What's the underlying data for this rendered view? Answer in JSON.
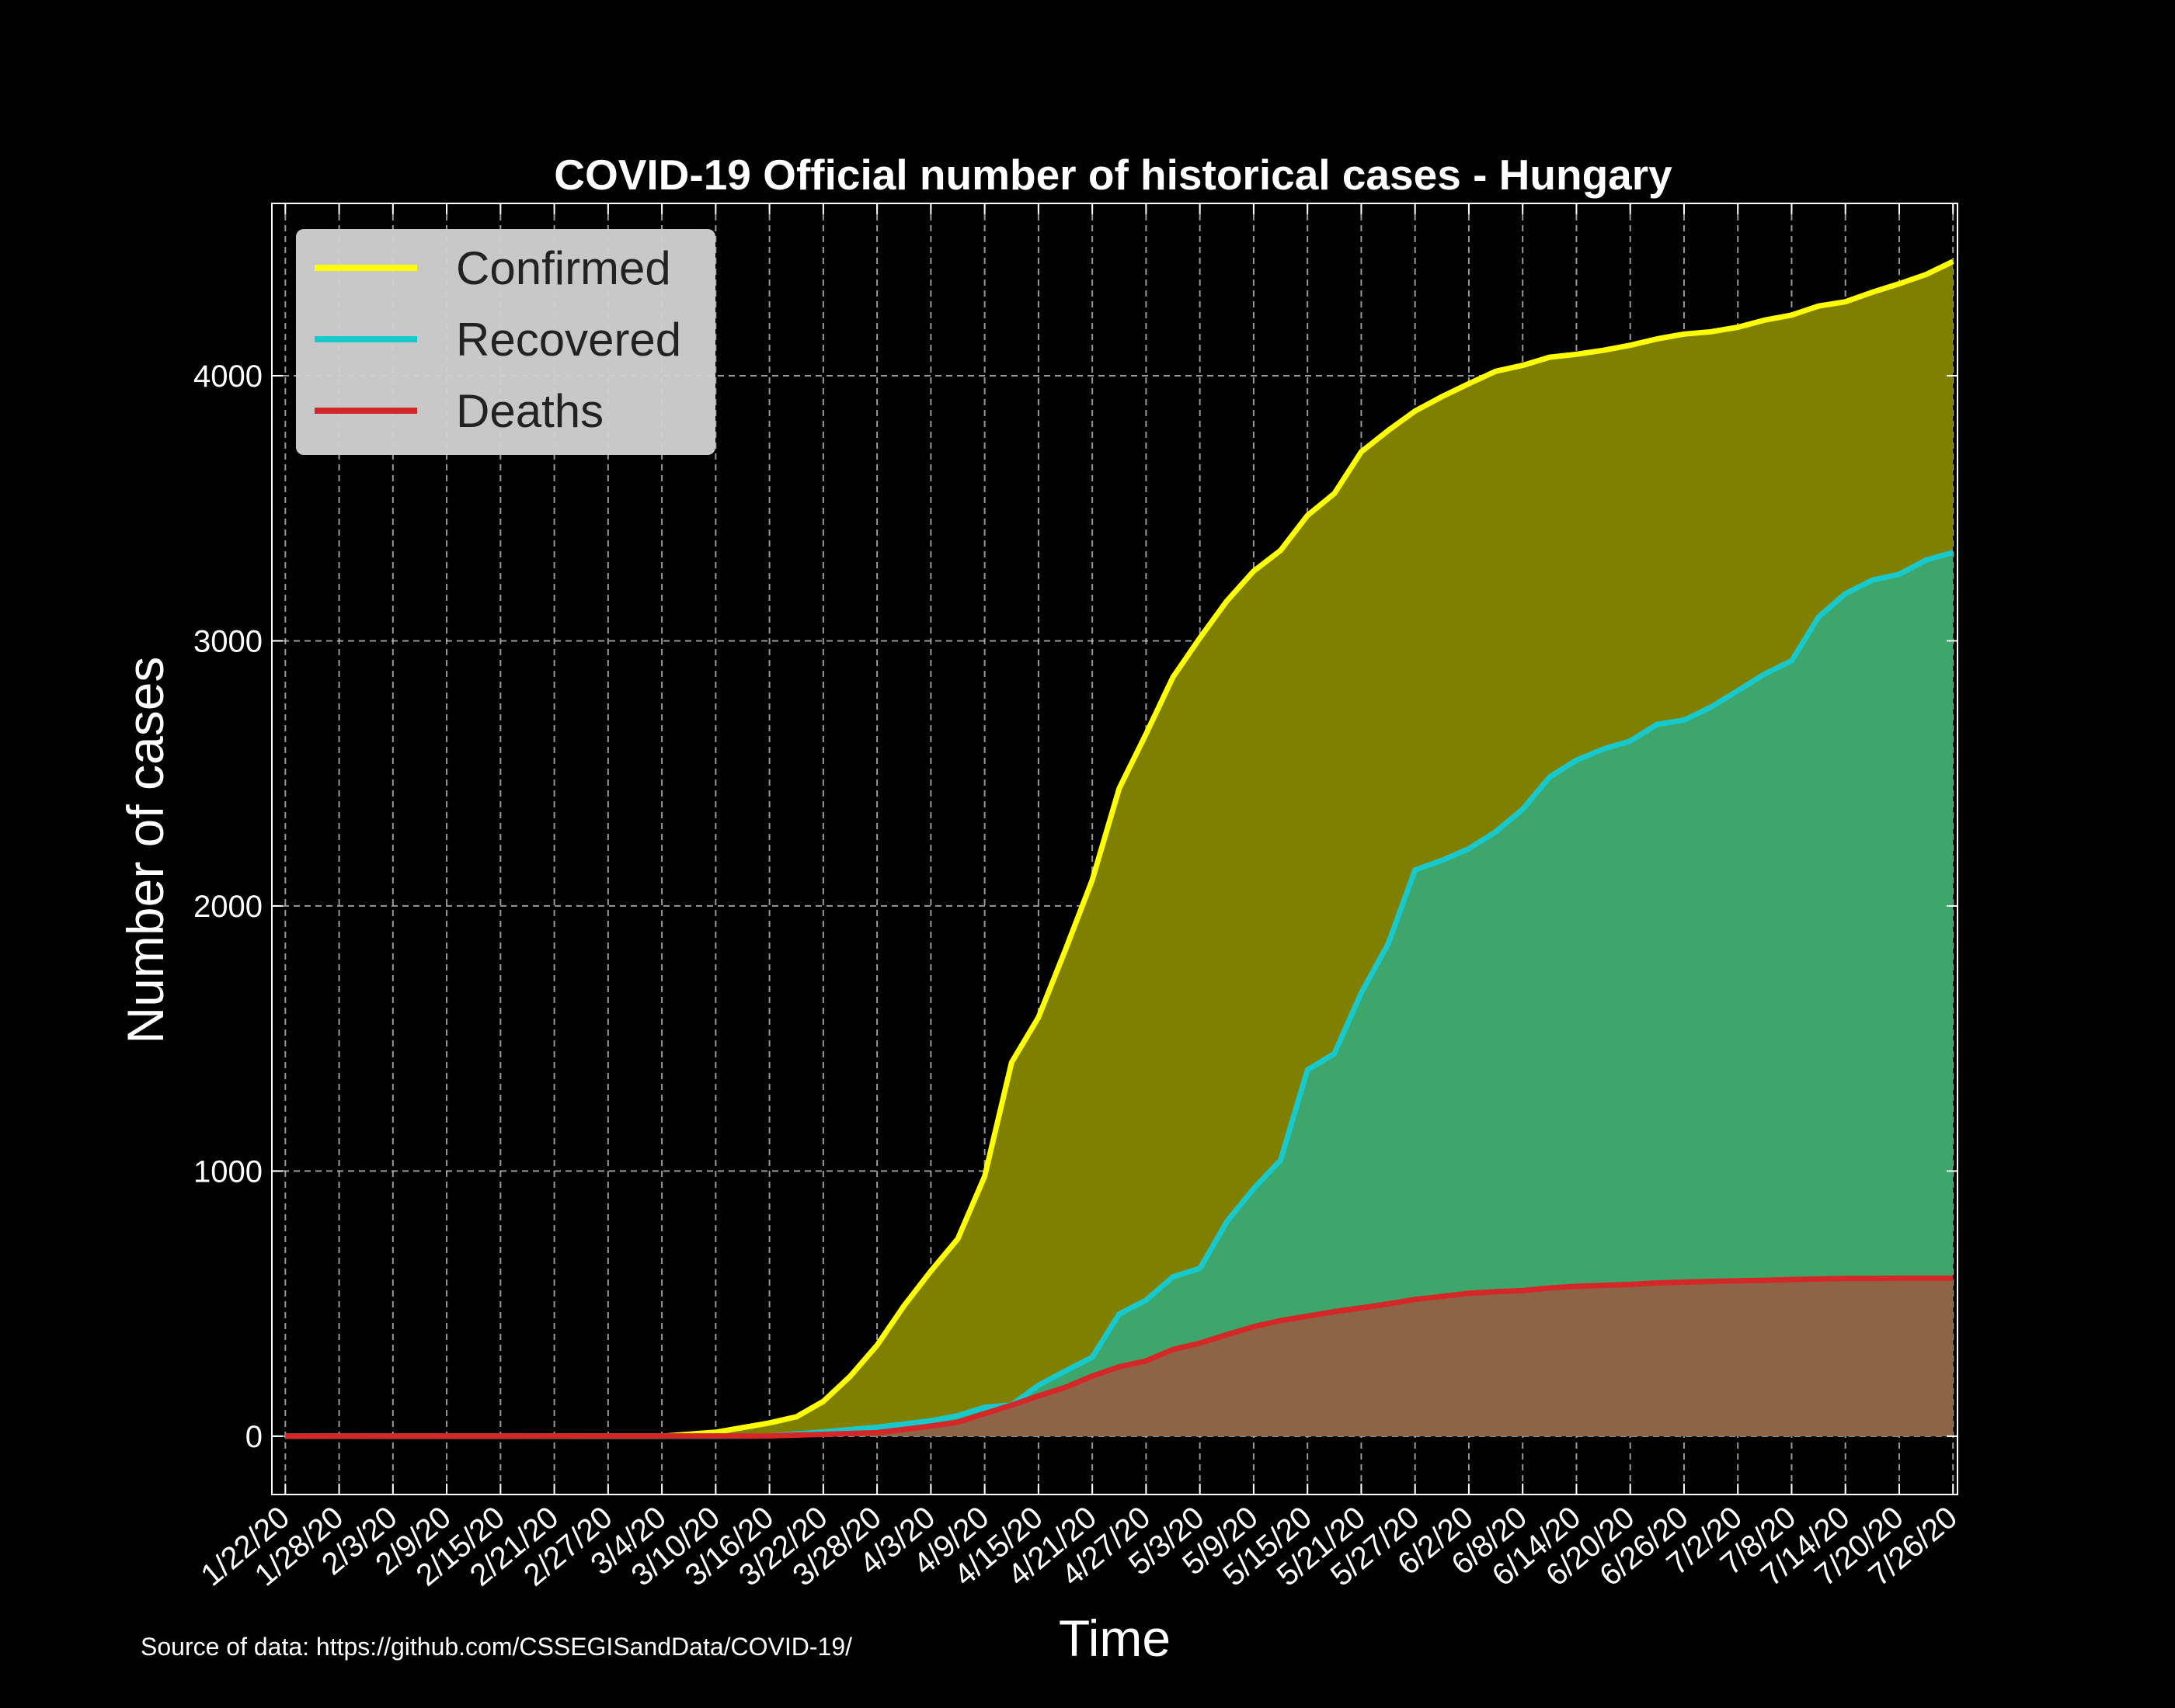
{
  "chart_data": {
    "type": "area",
    "title": "COVID-19 Official number of historical cases - Hungary",
    "xlabel": "Time",
    "ylabel": "Number of cases",
    "source": "Source of data: https://github.com/CSSEGISandData/COVID-19/",
    "start_date": "2020-01-22",
    "x_tick_labels": [
      "1/22/20",
      "1/28/20",
      "2/3/20",
      "2/9/20",
      "2/15/20",
      "2/21/20",
      "2/27/20",
      "3/4/20",
      "3/10/20",
      "3/16/20",
      "3/22/20",
      "3/28/20",
      "4/3/20",
      "4/9/20",
      "4/15/20",
      "4/21/20",
      "4/27/20",
      "5/3/20",
      "5/9/20",
      "5/15/20",
      "5/21/20",
      "5/27/20",
      "6/2/20",
      "6/8/20",
      "6/14/20",
      "6/20/20",
      "6/26/20",
      "7/2/20",
      "7/8/20",
      "7/14/20",
      "7/20/20",
      "7/26/20"
    ],
    "y_ticks": [
      0,
      1000,
      2000,
      3000,
      4000
    ],
    "ylim": [
      -220,
      4650
    ],
    "grid": true,
    "legend_position": "top-left",
    "series": [
      {
        "name": "Confirmed",
        "line_color": "#ffff00",
        "fill_color": "#808000",
        "points": [
          [
            "1/22/20",
            0
          ],
          [
            "3/4/20",
            0
          ],
          [
            "3/10/20",
            15
          ],
          [
            "3/16/20",
            50
          ],
          [
            "3/19/20",
            73
          ],
          [
            "3/22/20",
            131
          ],
          [
            "3/25/20",
            226
          ],
          [
            "3/28/20",
            343
          ],
          [
            "3/31/20",
            492
          ],
          [
            "4/3/20",
            623
          ],
          [
            "4/6/20",
            744
          ],
          [
            "4/9/20",
            980
          ],
          [
            "4/12/20",
            1410
          ],
          [
            "4/15/20",
            1580
          ],
          [
            "4/18/20",
            1834
          ],
          [
            "4/21/20",
            2098
          ],
          [
            "4/24/20",
            2443
          ],
          [
            "4/27/20",
            2649
          ],
          [
            "4/30/20",
            2863
          ],
          [
            "5/3/20",
            3011
          ],
          [
            "5/6/20",
            3150
          ],
          [
            "5/9/20",
            3263
          ],
          [
            "5/12/20",
            3341
          ],
          [
            "5/15/20",
            3473
          ],
          [
            "5/18/20",
            3556
          ],
          [
            "5/21/20",
            3713
          ],
          [
            "5/24/20",
            3793
          ],
          [
            "5/27/20",
            3867
          ],
          [
            "5/30/20",
            3921
          ],
          [
            "6/2/20",
            3970
          ],
          [
            "6/5/20",
            4017
          ],
          [
            "6/8/20",
            4039
          ],
          [
            "6/11/20",
            4070
          ],
          [
            "6/14/20",
            4081
          ],
          [
            "6/17/20",
            4096
          ],
          [
            "6/20/20",
            4115
          ],
          [
            "6/23/20",
            4139
          ],
          [
            "6/26/20",
            4157
          ],
          [
            "6/29/20",
            4166
          ],
          [
            "7/2/20",
            4183
          ],
          [
            "7/5/20",
            4210
          ],
          [
            "7/8/20",
            4229
          ],
          [
            "7/11/20",
            4263
          ],
          [
            "7/14/20",
            4279
          ],
          [
            "7/17/20",
            4315
          ],
          [
            "7/20/20",
            4347
          ],
          [
            "7/23/20",
            4382
          ],
          [
            "7/26/20",
            4431
          ]
        ]
      },
      {
        "name": "Recovered",
        "line_color": "#17c8cc",
        "fill_color": "#3ea66a",
        "points": [
          [
            "1/22/20",
            0
          ],
          [
            "3/10/20",
            0
          ],
          [
            "3/16/20",
            1
          ],
          [
            "3/22/20",
            16
          ],
          [
            "3/28/20",
            34
          ],
          [
            "4/3/20",
            58
          ],
          [
            "4/6/20",
            77
          ],
          [
            "4/9/20",
            109
          ],
          [
            "4/12/20",
            118
          ],
          [
            "4/15/20",
            192
          ],
          [
            "4/18/20",
            246
          ],
          [
            "4/21/20",
            298
          ],
          [
            "4/24/20",
            461
          ],
          [
            "4/27/20",
            513
          ],
          [
            "4/30/20",
            601
          ],
          [
            "5/3/20",
            633
          ],
          [
            "5/6/20",
            809
          ],
          [
            "5/9/20",
            934
          ],
          [
            "5/12/20",
            1041
          ],
          [
            "5/15/20",
            1382
          ],
          [
            "5/18/20",
            1443
          ],
          [
            "5/21/20",
            1672
          ],
          [
            "5/24/20",
            1857
          ],
          [
            "5/27/20",
            2136
          ],
          [
            "5/30/20",
            2172
          ],
          [
            "6/2/20",
            2216
          ],
          [
            "6/5/20",
            2280
          ],
          [
            "6/8/20",
            2365
          ],
          [
            "6/11/20",
            2486
          ],
          [
            "6/14/20",
            2550
          ],
          [
            "6/17/20",
            2592
          ],
          [
            "6/20/20",
            2622
          ],
          [
            "6/23/20",
            2685
          ],
          [
            "6/26/20",
            2701
          ],
          [
            "6/29/20",
            2750
          ],
          [
            "7/2/20",
            2812
          ],
          [
            "7/5/20",
            2875
          ],
          [
            "7/8/20",
            2925
          ],
          [
            "7/11/20",
            3090
          ],
          [
            "7/14/20",
            3178
          ],
          [
            "7/17/20",
            3229
          ],
          [
            "7/20/20",
            3251
          ],
          [
            "7/23/20",
            3305
          ],
          [
            "7/26/20",
            3333
          ]
        ]
      },
      {
        "name": "Deaths",
        "line_color": "#d62728",
        "fill_color": "#8c6446",
        "points": [
          [
            "1/22/20",
            0
          ],
          [
            "3/16/20",
            1
          ],
          [
            "3/22/20",
            7
          ],
          [
            "3/28/20",
            13
          ],
          [
            "4/3/20",
            38
          ],
          [
            "4/6/20",
            53
          ],
          [
            "4/9/20",
            85
          ],
          [
            "4/12/20",
            117
          ],
          [
            "4/15/20",
            152
          ],
          [
            "4/18/20",
            184
          ],
          [
            "4/21/20",
            227
          ],
          [
            "4/24/20",
            262
          ],
          [
            "4/27/20",
            284
          ],
          [
            "4/30/20",
            327
          ],
          [
            "5/3/20",
            351
          ],
          [
            "5/6/20",
            383
          ],
          [
            "5/9/20",
            413
          ],
          [
            "5/12/20",
            436
          ],
          [
            "5/15/20",
            453
          ],
          [
            "5/18/20",
            470
          ],
          [
            "5/21/20",
            484
          ],
          [
            "5/24/20",
            499
          ],
          [
            "5/27/20",
            516
          ],
          [
            "5/30/20",
            527
          ],
          [
            "6/2/20",
            539
          ],
          [
            "6/5/20",
            545
          ],
          [
            "6/8/20",
            549
          ],
          [
            "6/11/20",
            559
          ],
          [
            "6/14/20",
            565
          ],
          [
            "6/17/20",
            569
          ],
          [
            "6/20/20",
            572
          ],
          [
            "6/23/20",
            578
          ],
          [
            "6/26/20",
            581
          ],
          [
            "6/29/20",
            584
          ],
          [
            "7/2/20",
            586
          ],
          [
            "7/5/20",
            588
          ],
          [
            "7/8/20",
            591
          ],
          [
            "7/11/20",
            593
          ],
          [
            "7/14/20",
            595
          ],
          [
            "7/17/20",
            595
          ],
          [
            "7/20/20",
            596
          ],
          [
            "7/23/20",
            596
          ],
          [
            "7/26/20",
            596
          ]
        ]
      }
    ]
  }
}
